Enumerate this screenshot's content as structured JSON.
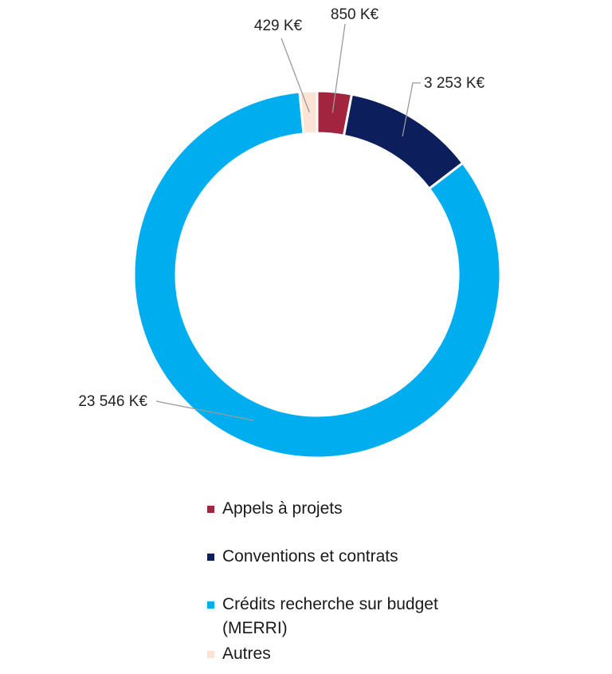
{
  "chart_data": {
    "type": "pie",
    "variant": "donut",
    "series": [
      {
        "name": "Appels à projets",
        "value": 850,
        "label": "850 K€",
        "color": "#a3243f"
      },
      {
        "name": "Conventions et contrats",
        "value": 3253,
        "label": "3 253 K€",
        "color": "#0c1f5c"
      },
      {
        "name": "Crédits recherche sur budget (MERRI)",
        "value": 23546,
        "label": "23 546 K€",
        "color": "#00aeef"
      },
      {
        "name": "Autres",
        "value": 429,
        "label": "429 K€",
        "color": "#fbe3d6"
      }
    ],
    "unit": "K€",
    "legend_position": "bottom"
  }
}
